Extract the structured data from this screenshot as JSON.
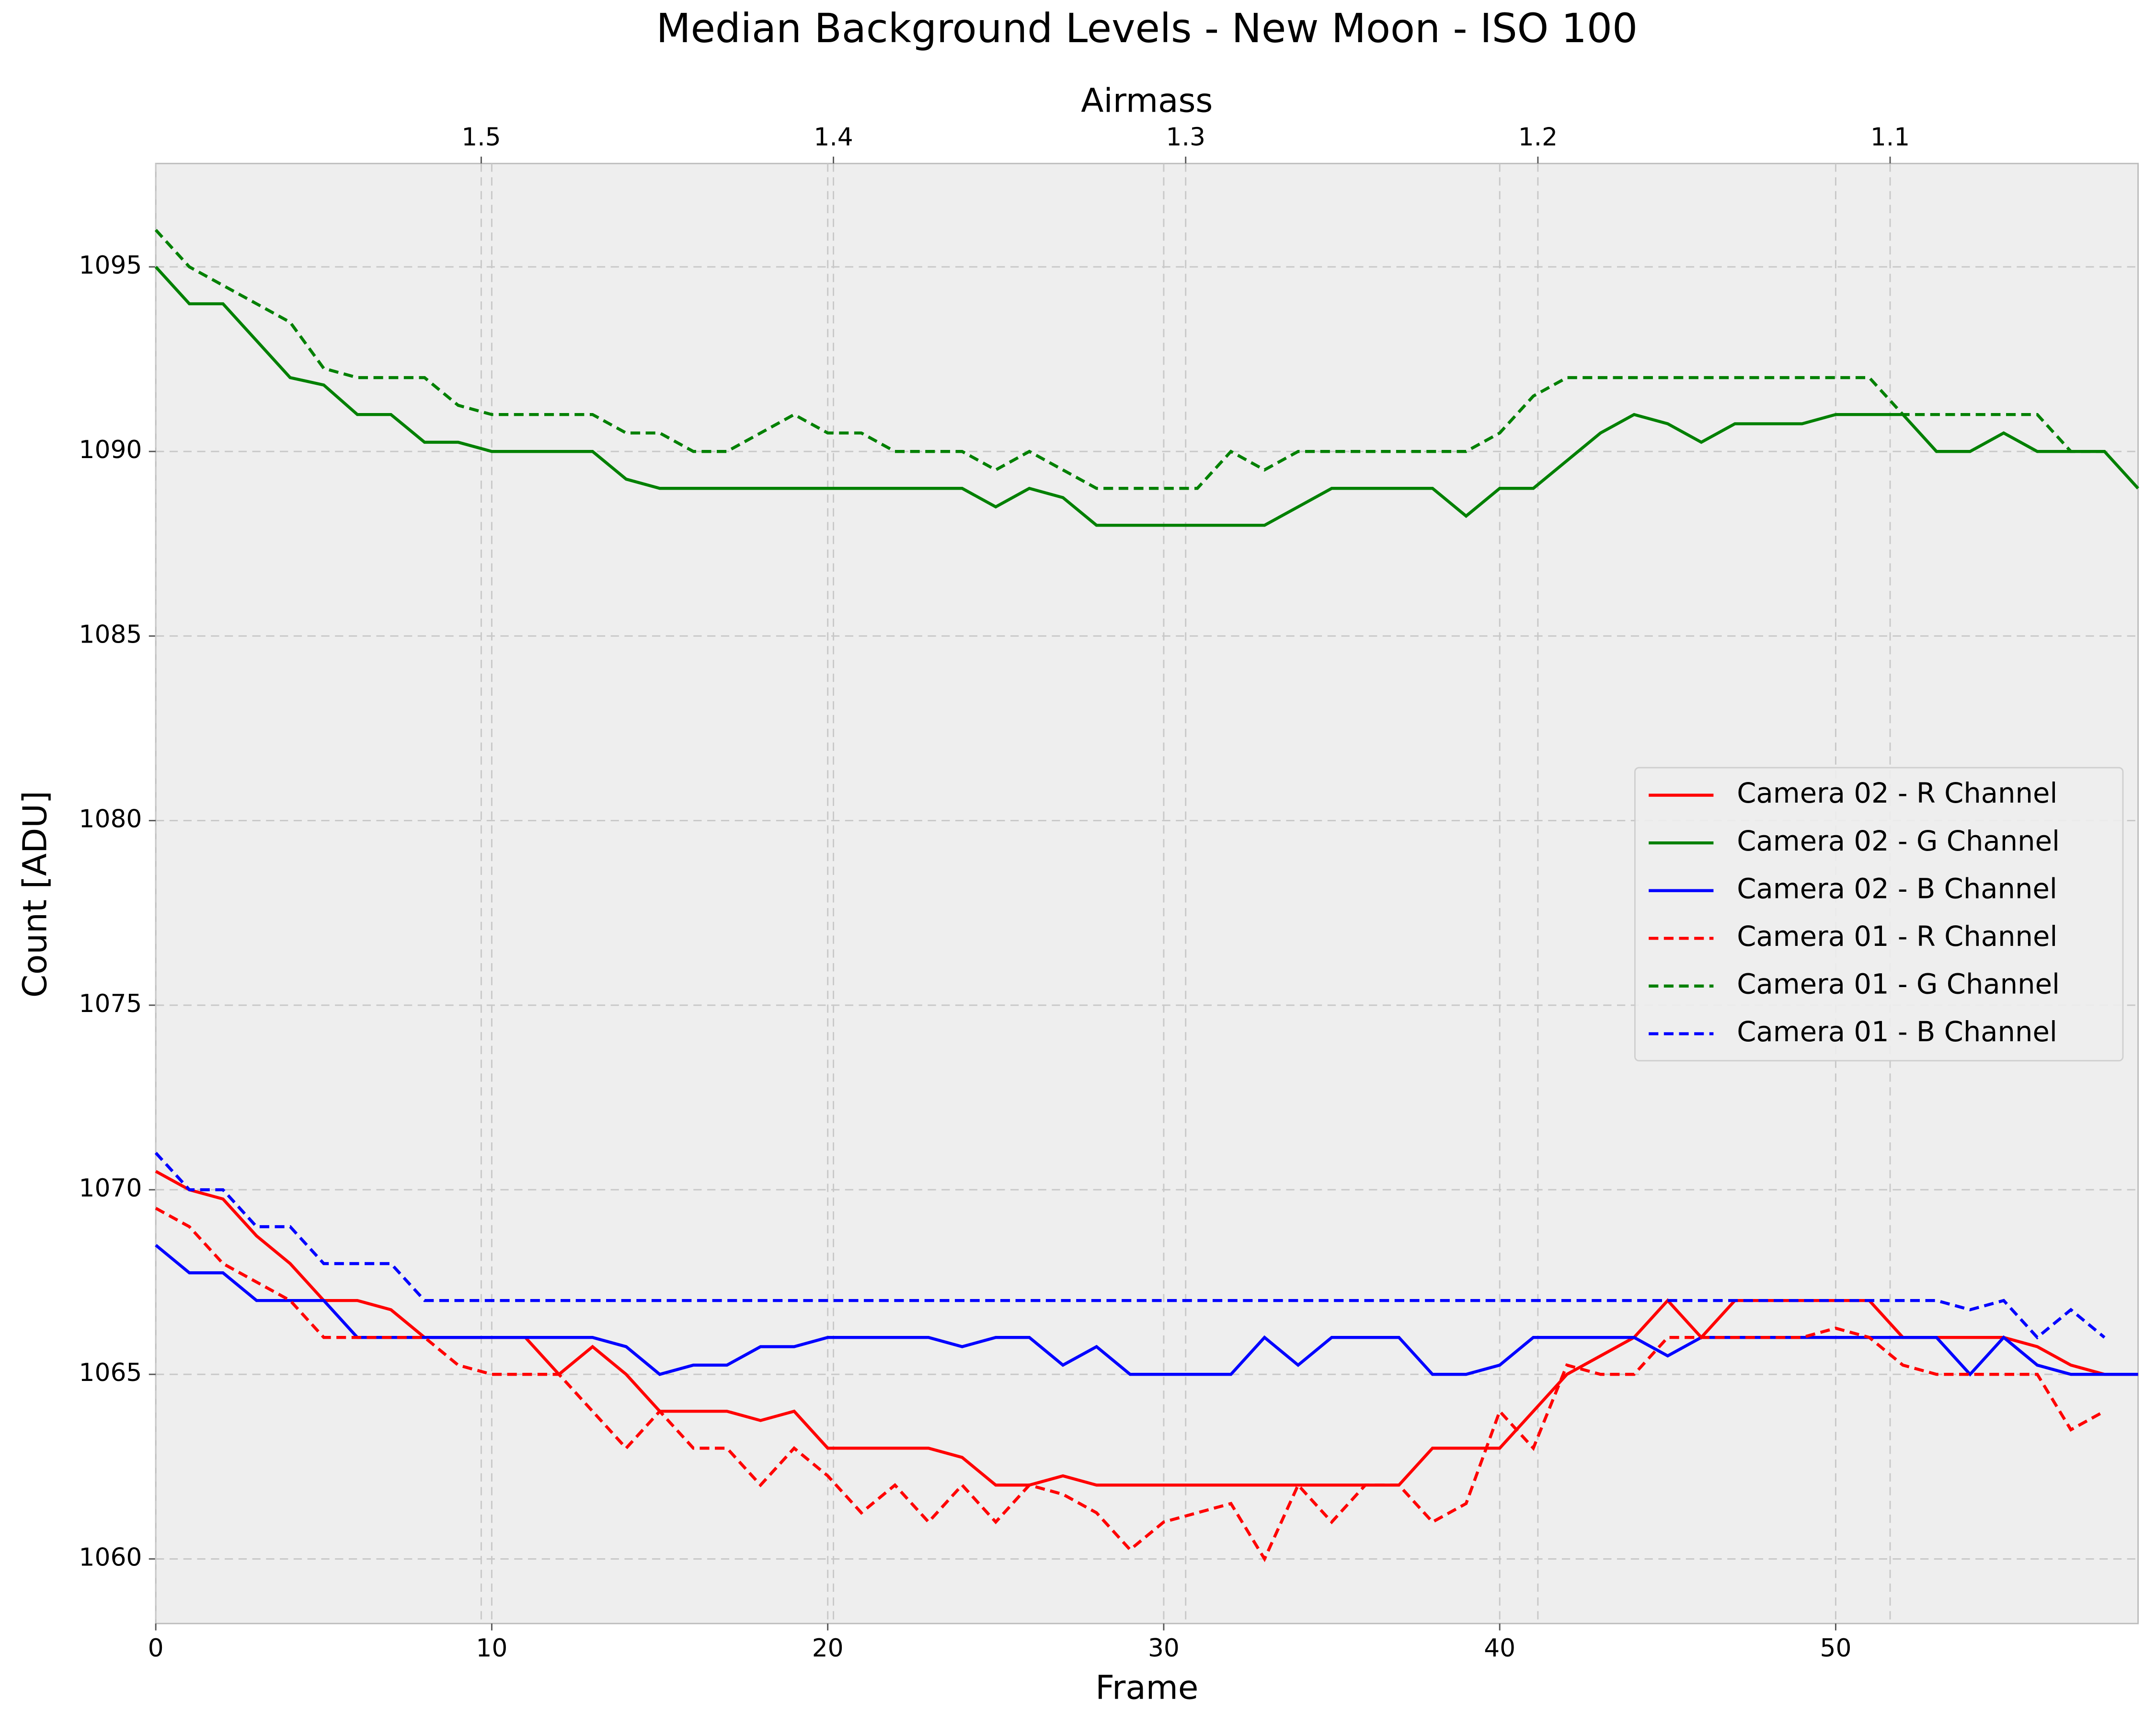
{
  "chart_data": {
    "type": "line",
    "title": "Median Background Levels - New Moon - ISO 100",
    "xlabel": "Frame",
    "ylabel": "Count [ADU]",
    "x2label": "Airmass",
    "x": [
      0,
      1,
      2,
      3,
      4,
      5,
      6,
      7,
      8,
      9,
      10,
      11,
      12,
      13,
      14,
      15,
      16,
      17,
      18,
      19,
      20,
      21,
      22,
      23,
      24,
      25,
      26,
      27,
      28,
      29,
      30,
      31,
      32,
      33,
      34,
      35,
      36,
      37,
      38,
      39,
      40,
      41,
      42,
      43,
      44,
      45,
      46,
      47,
      48,
      49,
      50,
      51,
      52,
      53,
      54,
      55,
      56,
      57,
      58,
      59
    ],
    "xlim": [
      0,
      59
    ],
    "xticks": [
      0,
      10,
      20,
      30,
      40,
      50
    ],
    "ylim": [
      1058.25,
      1097.8
    ],
    "yticks": [
      1060,
      1065,
      1070,
      1075,
      1080,
      1085,
      1090,
      1095
    ],
    "x2lim": [
      1.5924,
      1.0296
    ],
    "x2ticks": [
      1.5,
      1.4,
      1.3,
      1.2,
      1.1
    ],
    "grid": true,
    "legend": "center right",
    "series": [
      {
        "name": "Camera 02 - R Channel",
        "color": "#ff0000",
        "dash": "solid",
        "values": [
          1070.5,
          1070,
          1069.75,
          1068.75,
          1068,
          1067,
          1067,
          1066.75,
          1066,
          1066,
          1066,
          1066,
          1065,
          1065.75,
          1065,
          1064,
          1064,
          1064,
          1063.75,
          1064,
          1063,
          1063,
          1063,
          1063,
          1062.75,
          1062,
          1062,
          1062.25,
          1062,
          1062,
          1062,
          1062,
          1062,
          1062,
          1062,
          1062,
          1062,
          1062,
          1063,
          1063,
          1063,
          1064,
          1065,
          1065.5,
          1066,
          1067,
          1066,
          1067,
          1067,
          1067,
          1067,
          1067,
          1066,
          1066,
          1066,
          1066,
          1065.75,
          1065.25,
          1065,
          1065
        ]
      },
      {
        "name": "Camera 02 - G Channel",
        "color": "#008000",
        "dash": "solid",
        "values": [
          1095,
          1094,
          1094,
          1093,
          1092,
          1091.8,
          1091,
          1091,
          1090.25,
          1090.25,
          1090,
          1090,
          1090,
          1090,
          1089.25,
          1089,
          1089,
          1089,
          1089,
          1089,
          1089,
          1089,
          1089,
          1089,
          1089,
          1088.5,
          1089,
          1088.75,
          1088,
          1088,
          1088,
          1088,
          1088,
          1088,
          1088.5,
          1089,
          1089,
          1089,
          1089,
          1088.25,
          1089,
          1089,
          1089.75,
          1090.5,
          1091,
          1090.75,
          1090.25,
          1090.75,
          1090.75,
          1090.75,
          1091,
          1091,
          1091,
          1090,
          1090,
          1090.5,
          1090,
          1090,
          1090,
          1089
        ]
      },
      {
        "name": "Camera 02 - B Channel",
        "color": "#0000ff",
        "dash": "solid",
        "values": [
          1068.5,
          1067.75,
          1067.75,
          1067,
          1067,
          1067,
          1066,
          1066,
          1066,
          1066,
          1066,
          1066,
          1066,
          1066,
          1065.75,
          1065,
          1065.25,
          1065.25,
          1065.75,
          1065.75,
          1066,
          1066,
          1066,
          1066,
          1065.75,
          1066,
          1066,
          1065.25,
          1065.75,
          1065,
          1065,
          1065,
          1065,
          1066,
          1065.25,
          1066,
          1066,
          1066,
          1065,
          1065,
          1065.25,
          1066,
          1066,
          1066,
          1066,
          1065.5,
          1066,
          1066,
          1066,
          1066,
          1066,
          1066,
          1066,
          1066,
          1065,
          1066,
          1065.25,
          1065,
          1065,
          1065
        ]
      },
      {
        "name": "Camera 01 - R Channel",
        "color": "#ff0000",
        "dash": "dashed",
        "values": [
          1069.5,
          1069,
          1068,
          1067.5,
          1067,
          1066,
          1066,
          1066,
          1066,
          1065.25,
          1065,
          1065,
          1065,
          1064,
          1063,
          1064,
          1063,
          1063,
          1062,
          1063,
          1062.25,
          1061.25,
          1062,
          1061,
          1062,
          1061,
          1062,
          1061.75,
          1061.25,
          1060.25,
          1061,
          1061.25,
          1061.5,
          1060,
          1062,
          1061,
          1062,
          1062,
          1061,
          1061.5,
          1064,
          1063,
          1065.25,
          1065,
          1065,
          1066,
          1066,
          1066,
          1066,
          1066,
          1066.25,
          1066,
          1065.25,
          1065,
          1065,
          1065,
          1065,
          1063.5,
          1064,
          null
        ]
      },
      {
        "name": "Camera 01 - G Channel",
        "color": "#008000",
        "dash": "dashed",
        "values": [
          1096,
          1095,
          1094.5,
          1094,
          1093.5,
          1092.25,
          1092,
          1092,
          1092,
          1091.25,
          1091,
          1091,
          1091,
          1091,
          1090.5,
          1090.5,
          1090,
          1090,
          1090.5,
          1091,
          1090.5,
          1090.5,
          1090,
          1090,
          1090,
          1089.5,
          1090,
          1089.5,
          1089,
          1089,
          1089,
          1089,
          1090,
          1089.5,
          1090,
          1090,
          1090,
          1090,
          1090,
          1090,
          1090.5,
          1091.5,
          1092,
          1092,
          1092,
          1092,
          1092,
          1092,
          1092,
          1092,
          1092,
          1092,
          1091,
          1091,
          1091,
          1091,
          1091,
          1090,
          1090,
          null
        ]
      },
      {
        "name": "Camera 01 - B Channel",
        "color": "#0000ff",
        "dash": "dashed",
        "values": [
          1071,
          1070,
          1070,
          1069,
          1069,
          1068,
          1068,
          1068,
          1067,
          1067,
          1067,
          1067,
          1067,
          1067,
          1067,
          1067,
          1067,
          1067,
          1067,
          1067,
          1067,
          1067,
          1067,
          1067,
          1067,
          1067,
          1067,
          1067,
          1067,
          1067,
          1067,
          1067,
          1067,
          1067,
          1067,
          1067,
          1067,
          1067,
          1067,
          1067,
          1067,
          1067,
          1067,
          1067,
          1067,
          1067,
          1067,
          1067,
          1067,
          1067,
          1067,
          1067,
          1067,
          1067,
          1066.75,
          1067,
          1066,
          1066.75,
          1066,
          null
        ]
      }
    ]
  }
}
